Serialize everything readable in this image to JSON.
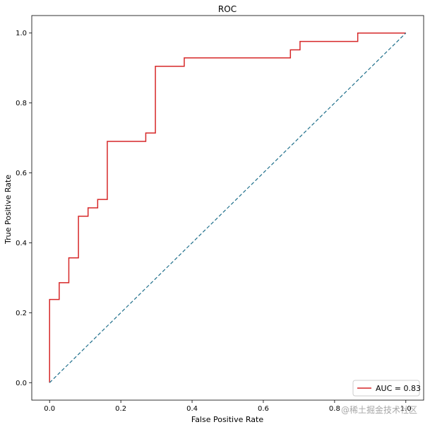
{
  "chart_data": {
    "type": "line",
    "title": "ROC",
    "xlabel": "False Positive Rate",
    "ylabel": "True Positive Rate",
    "xlim": [
      -0.05,
      1.05
    ],
    "ylim": [
      -0.05,
      1.05
    ],
    "xticks": [
      0.0,
      0.2,
      0.4,
      0.6,
      0.8,
      1.0
    ],
    "xtick_labels": [
      "0.0",
      "0.2",
      "0.4",
      "0.6",
      "0.8",
      "1.0"
    ],
    "yticks": [
      0.0,
      0.2,
      0.4,
      0.6,
      0.8,
      1.0
    ],
    "ytick_labels": [
      "0.0",
      "0.2",
      "0.4",
      "0.6",
      "0.8",
      "1.0"
    ],
    "grid": false,
    "legend_position": "lower-right",
    "series": [
      {
        "name": "AUC = 0.83",
        "color": "#d62728",
        "style": "step",
        "x": [
          0.0,
          0.0,
          0.027,
          0.027,
          0.054,
          0.054,
          0.081,
          0.081,
          0.108,
          0.108,
          0.135,
          0.135,
          0.162,
          0.162,
          0.27,
          0.27,
          0.297,
          0.297,
          0.378,
          0.378,
          0.676,
          0.676,
          0.703,
          0.703,
          0.865,
          0.865,
          1.0
        ],
        "y": [
          0.0,
          0.238,
          0.238,
          0.286,
          0.286,
          0.357,
          0.357,
          0.476,
          0.476,
          0.5,
          0.5,
          0.524,
          0.524,
          0.69,
          0.69,
          0.714,
          0.714,
          0.905,
          0.905,
          0.929,
          0.929,
          0.952,
          0.952,
          0.976,
          0.976,
          1.0,
          1.0
        ]
      },
      {
        "name": "",
        "color": "#1f6f8b",
        "style": "dashed",
        "x": [
          0.0,
          1.0
        ],
        "y": [
          0.0,
          1.0
        ]
      }
    ]
  },
  "watermark": "@稀土掘金技术社区"
}
